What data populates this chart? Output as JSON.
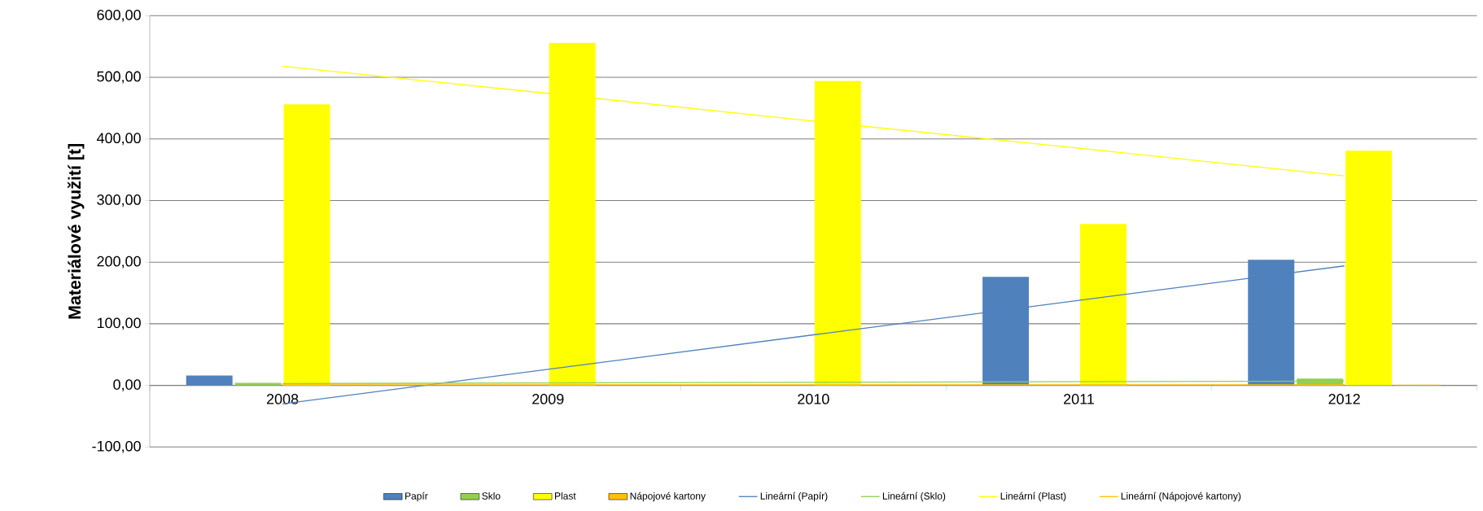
{
  "chart_data": {
    "type": "bar",
    "ylabel": "Materiálové využití [t]",
    "categories": [
      "2008",
      "2009",
      "2010",
      "2011",
      "2012"
    ],
    "series": [
      {
        "name": "Papír",
        "color": "#4f81bd",
        "values": [
          16,
          0,
          0,
          176,
          204
        ]
      },
      {
        "name": "Sklo",
        "color": "#92d050",
        "values": [
          4,
          0,
          0,
          0,
          11
        ]
      },
      {
        "name": "Plast",
        "color": "#ffff00",
        "values": [
          456,
          556,
          494,
          262,
          381
        ]
      },
      {
        "name": "Nápojové kartony",
        "color": "#ffc000",
        "values": [
          null,
          null,
          null,
          null,
          1
        ]
      },
      {
        "name": "Lineární (Papír)",
        "type": "line",
        "color": "#4f81bd",
        "values": [
          -30,
          26,
          82,
          138,
          194
        ]
      },
      {
        "name": "Lineární (Sklo)",
        "type": "line",
        "color": "#92d050",
        "values": [
          3,
          4,
          5,
          6,
          7
        ]
      },
      {
        "name": "Lineární (Plast)",
        "type": "line",
        "color": "#ffff00",
        "values": [
          518,
          474,
          429,
          385,
          340
        ]
      },
      {
        "name": "Lineární (Nápojové kartony)",
        "type": "line",
        "color": "#ffc000",
        "values": [
          1,
          1,
          1,
          1,
          1
        ]
      }
    ],
    "ylim": [
      -100,
      600
    ],
    "yticks": [
      {
        "value": -100,
        "label": "-100,00"
      },
      {
        "value": 0,
        "label": "0,00"
      },
      {
        "value": 100,
        "label": "100,00"
      },
      {
        "value": 200,
        "label": "200,00"
      },
      {
        "value": 300,
        "label": "300,00"
      },
      {
        "value": 400,
        "label": "400,00"
      },
      {
        "value": 500,
        "label": "500,00"
      },
      {
        "value": 600,
        "label": "600,00"
      }
    ],
    "grid": "y",
    "legend": "bottom"
  }
}
